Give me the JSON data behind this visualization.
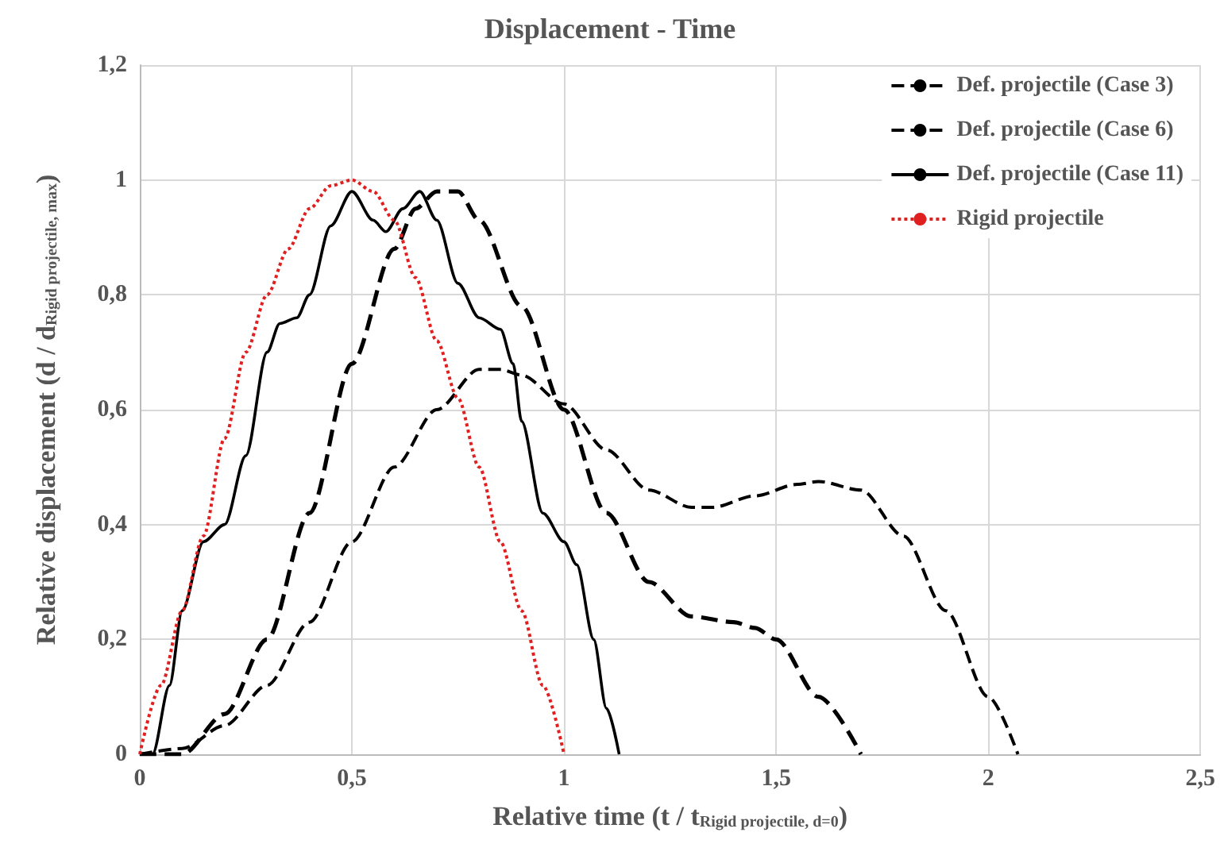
{
  "chart_data": {
    "type": "line",
    "title": "Displacement - Time",
    "xlabel": "Relative time (t / t$_{Rigid projectile, d=0}$)",
    "ylabel": "Relative displacement (d / d$_{Rigid projectile, max}$)",
    "xlim": [
      0,
      2.5
    ],
    "xticks": [
      0,
      {
        "value": 0.5,
        "label": "0,5"
      },
      1,
      {
        "value": 1.5,
        "label": "1,5"
      },
      2,
      {
        "value": 2.5,
        "label": "2,5"
      }
    ],
    "ylim": [
      0,
      1.2
    ],
    "yticks": [
      0,
      {
        "value": 0.2,
        "label": "0,2"
      },
      {
        "value": 0.4,
        "label": "0,4"
      },
      {
        "value": 0.6,
        "label": "0,6"
      },
      {
        "value": 0.8,
        "label": "0,8"
      },
      1,
      {
        "value": 1.2,
        "label": "1,2"
      }
    ],
    "grid": true,
    "legend": "top right",
    "marker": "none",
    "series": [
      {
        "name": "Def. projectile (Case 3)",
        "color": "#000000",
        "line_style": "dashed",
        "x": [
          0,
          0.1,
          0.2,
          0.3,
          0.4,
          0.5,
          0.6,
          0.7,
          0.8,
          0.85,
          0.9,
          1,
          1.1,
          1.2,
          1.3,
          1.35,
          1.45,
          1.55,
          1.6,
          1.7,
          1.8,
          1.9,
          2,
          2.07
        ],
        "values": [
          0,
          0.01,
          0.05,
          0.12,
          0.23,
          0.37,
          0.5,
          0.6,
          0.67,
          0.67,
          0.66,
          0.61,
          0.53,
          0.46,
          0.43,
          0.43,
          0.45,
          0.47,
          0.475,
          0.46,
          0.38,
          0.25,
          0.1,
          0
        ]
      },
      {
        "name": "Def. projectile (Case 6)",
        "color": "#000000",
        "line_style": "dashed",
        "x": [
          0,
          0.1,
          0.2,
          0.3,
          0.4,
          0.5,
          0.6,
          0.65,
          0.7,
          0.75,
          0.8,
          0.9,
          1,
          1.1,
          1.2,
          1.3,
          1.4,
          1.45,
          1.5,
          1.6,
          1.7
        ],
        "values": [
          0,
          0,
          0.07,
          0.2,
          0.42,
          0.68,
          0.88,
          0.95,
          0.98,
          0.98,
          0.93,
          0.78,
          0.6,
          0.42,
          0.3,
          0.24,
          0.23,
          0.22,
          0.2,
          0.1,
          0
        ]
      },
      {
        "name": "Def. projectile (Case 11)",
        "color": "#000000",
        "line_style": "solid",
        "x": [
          0,
          0.03,
          0.07,
          0.1,
          0.15,
          0.2,
          0.25,
          0.3,
          0.33,
          0.37,
          0.4,
          0.45,
          0.5,
          0.55,
          0.58,
          0.62,
          0.66,
          0.7,
          0.75,
          0.8,
          0.85,
          0.88,
          0.9,
          0.95,
          1,
          1.03,
          1.07,
          1.1,
          1.13
        ],
        "values": [
          0,
          0,
          0.12,
          0.25,
          0.37,
          0.4,
          0.52,
          0.7,
          0.75,
          0.76,
          0.8,
          0.92,
          0.98,
          0.93,
          0.91,
          0.95,
          0.98,
          0.93,
          0.82,
          0.76,
          0.74,
          0.68,
          0.58,
          0.42,
          0.37,
          0.33,
          0.2,
          0.08,
          0
        ]
      },
      {
        "name": "Rigid projectile",
        "color": "#e02020",
        "line_style": "dotted",
        "x": [
          0,
          0.05,
          0.1,
          0.15,
          0.2,
          0.25,
          0.3,
          0.35,
          0.4,
          0.45,
          0.5,
          0.55,
          0.6,
          0.65,
          0.7,
          0.75,
          0.8,
          0.85,
          0.9,
          0.95,
          1
        ],
        "values": [
          0,
          0.12,
          0.25,
          0.38,
          0.55,
          0.7,
          0.8,
          0.88,
          0.95,
          0.99,
          1,
          0.98,
          0.93,
          0.83,
          0.72,
          0.62,
          0.5,
          0.37,
          0.25,
          0.12,
          0
        ]
      }
    ]
  }
}
